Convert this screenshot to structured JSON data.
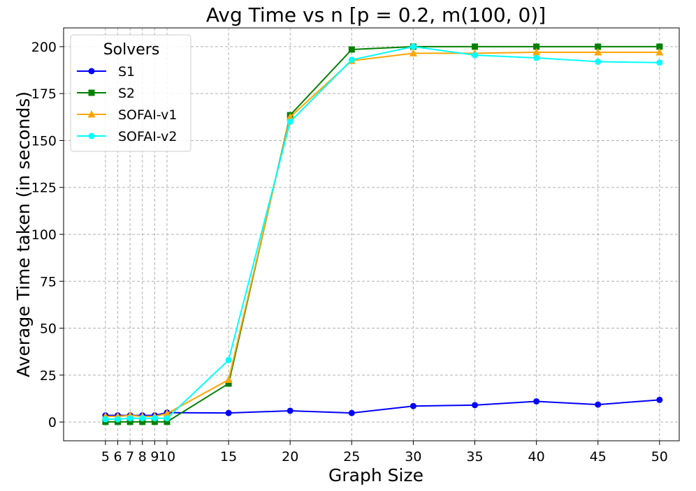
{
  "chart_data": {
    "type": "line",
    "title": "Avg Time vs n [p = 0.2, m(100, 0)]",
    "xlabel": "Graph Size",
    "ylabel": "Average Time taken (in seconds)",
    "x": [
      5,
      6,
      7,
      8,
      9,
      10,
      15,
      20,
      25,
      30,
      35,
      40,
      45,
      50
    ],
    "xticks": [
      5,
      6,
      7,
      8,
      9,
      10,
      15,
      20,
      25,
      30,
      35,
      40,
      45,
      50
    ],
    "yticks": [
      0,
      25,
      50,
      75,
      100,
      125,
      150,
      175,
      200
    ],
    "xlim": [
      1.6,
      51.6
    ],
    "ylim": [
      -10,
      210
    ],
    "grid": true,
    "legend": {
      "title": "Solvers",
      "position": "top-left"
    },
    "series": [
      {
        "name": "S1",
        "color": "#0000ff",
        "marker": "circle",
        "values": [
          3.5,
          3.5,
          3.5,
          3.5,
          3.5,
          5,
          4.8,
          6,
          4.8,
          8.5,
          9,
          11,
          9.3,
          11.8
        ]
      },
      {
        "name": "S2",
        "color": "#008000",
        "marker": "square",
        "values": [
          0.1,
          0.1,
          0.1,
          0.1,
          0.1,
          0.1,
          20.5,
          163.5,
          198.5,
          200,
          200,
          200,
          200,
          200
        ]
      },
      {
        "name": "SOFAI-v1",
        "color": "#ffa500",
        "marker": "triangle",
        "values": [
          3,
          3,
          3.5,
          3,
          3,
          4.5,
          22.5,
          162.5,
          192.5,
          196.5,
          196.5,
          197,
          197,
          197
        ]
      },
      {
        "name": "SOFAI-v2",
        "color": "#00ffff",
        "marker": "circle",
        "values": [
          1.5,
          1.5,
          2,
          2,
          2,
          2,
          33,
          160,
          193,
          200,
          195.5,
          194,
          192,
          191.5
        ]
      }
    ]
  }
}
